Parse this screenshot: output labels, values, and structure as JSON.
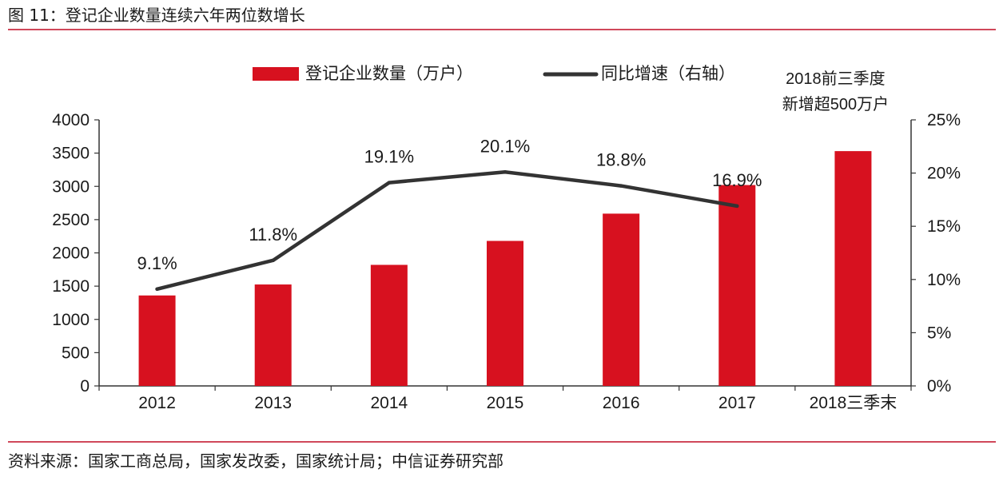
{
  "figure": {
    "title": "图 11：登记企业数量连续六年两位数增长",
    "source": "资料来源：国家工商总局，国家发改委，国家统计局；中信证券研究部"
  },
  "chart_data": {
    "type": "bar",
    "categories": [
      "2012",
      "2013",
      "2014",
      "2015",
      "2016",
      "2017",
      "2018三季末"
    ],
    "series": [
      {
        "name": "登记企业数量（万户）",
        "type": "bar",
        "axis": "left",
        "color": "#d7111f",
        "values": [
          1360,
          1525,
          1820,
          2180,
          2590,
          3020,
          3530
        ]
      },
      {
        "name": "同比增速（右轴）",
        "type": "line",
        "axis": "right",
        "color": "#333333",
        "values": [
          9.1,
          11.8,
          19.1,
          20.1,
          18.8,
          16.9,
          null
        ],
        "labels": [
          "9.1%",
          "11.8%",
          "19.1%",
          "20.1%",
          "18.8%",
          "16.9%",
          null
        ]
      }
    ],
    "y_left": {
      "min": 0,
      "max": 4000,
      "ticks": [
        "0",
        "500",
        "1000",
        "1500",
        "2000",
        "2500",
        "3000",
        "3500",
        "4000"
      ]
    },
    "y_right": {
      "min": 0,
      "max": 25,
      "ticks": [
        "0%",
        "5%",
        "10%",
        "15%",
        "20%",
        "25%"
      ]
    },
    "annotation": [
      "2018前三季度",
      "新增超500万户"
    ],
    "legend_position": "top-center",
    "grid": false
  }
}
